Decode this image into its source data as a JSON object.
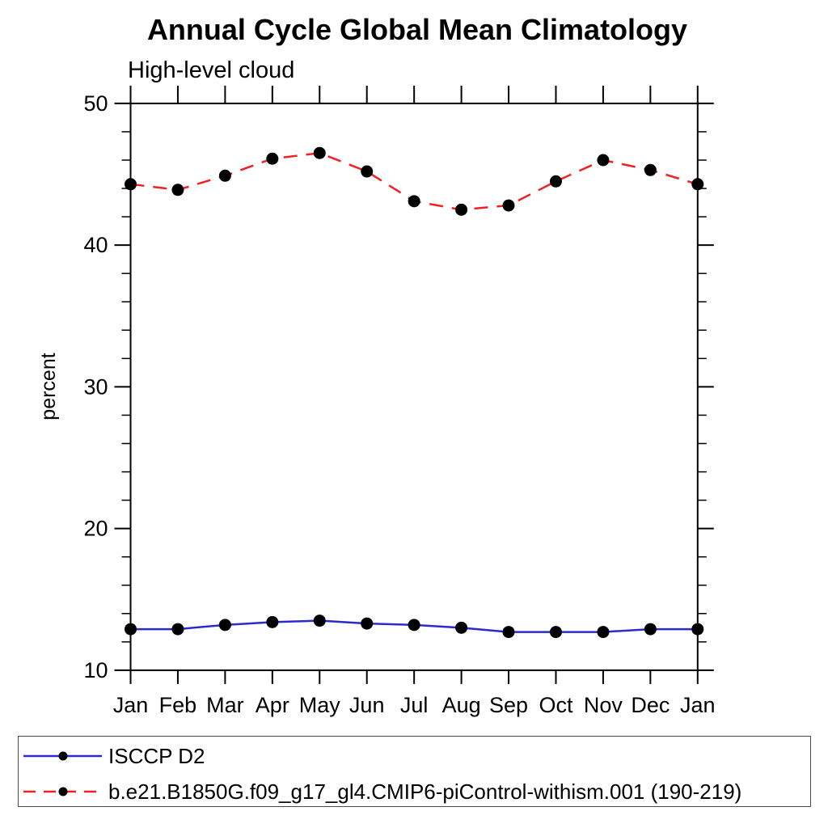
{
  "title": "Annual Cycle Global Mean Climatology",
  "subtitle": "High-level cloud",
  "chart_data": {
    "type": "line",
    "x_categories": [
      "Jan",
      "Feb",
      "Mar",
      "Apr",
      "May",
      "Jun",
      "Jul",
      "Aug",
      "Sep",
      "Oct",
      "Nov",
      "Dec",
      "Jan"
    ],
    "ylabel": "percent",
    "ylim": [
      10,
      50
    ],
    "yticks_major": [
      10,
      20,
      30,
      40,
      50
    ],
    "ytick_minor_step": 2,
    "grid": false,
    "legend_position": "bottom-left-box",
    "marker_color": "#000000",
    "axis_color": "#000000",
    "series": [
      {
        "name": "ISCCP D2",
        "color": "#2a2ad0",
        "line_style": "solid",
        "marker": "filled-circle",
        "values": [
          12.9,
          12.9,
          13.2,
          13.4,
          13.5,
          13.3,
          13.2,
          13.0,
          12.7,
          12.7,
          12.7,
          12.9,
          12.9
        ]
      },
      {
        "name": "b.e21.B1850G.f09_g17_gl4.CMIP6-piControl-withism.001 (190-219)",
        "color": "#ee2222",
        "line_style": "dashed",
        "marker": "filled-circle",
        "values": [
          44.3,
          43.9,
          44.9,
          46.1,
          46.5,
          45.2,
          43.1,
          42.5,
          42.8,
          44.5,
          46.0,
          45.3,
          44.3
        ]
      }
    ]
  }
}
